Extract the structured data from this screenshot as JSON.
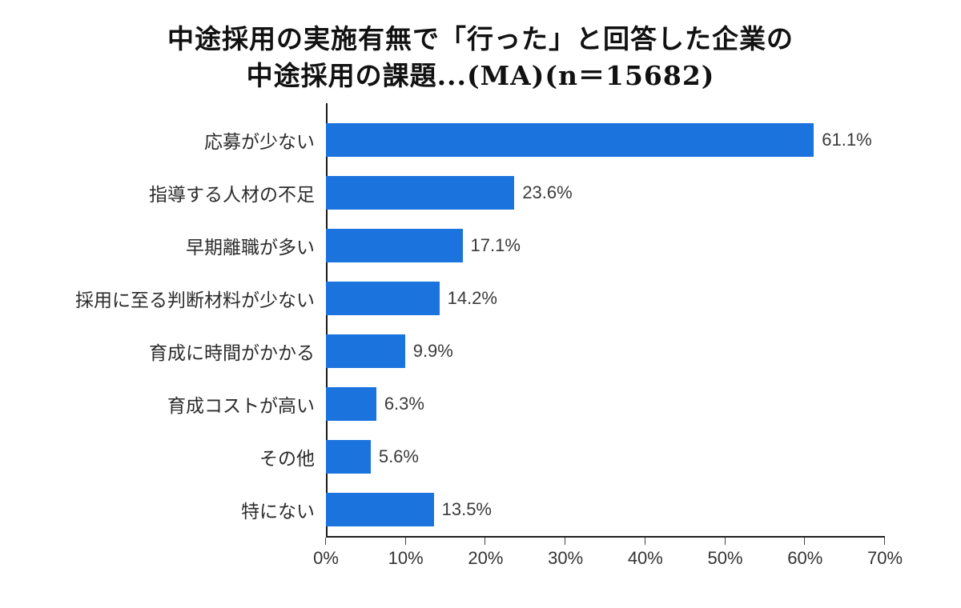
{
  "title": {
    "line1": "中途採用の実施有無で「行った」と回答した企業の",
    "line2": "中途採用の課題...(MA)(n＝15682)"
  },
  "chart_data": {
    "type": "bar",
    "orientation": "horizontal",
    "title": "中途採用の実施有無で「行った」と回答した企業の中途採用の課題...(MA)(n＝15682)",
    "categories": [
      "応募が少ない",
      "指導する人材の不足",
      "早期離職が多い",
      "採用に至る判断材料が少ない",
      "育成に時間がかかる",
      "育成コストが高い",
      "その他",
      "特にない"
    ],
    "values": [
      61.1,
      23.6,
      17.1,
      14.2,
      9.9,
      6.3,
      5.6,
      13.5
    ],
    "value_labels": [
      "61.1%",
      "23.6%",
      "17.1%",
      "14.2%",
      "9.9%",
      "6.3%",
      "5.6%",
      "13.5%"
    ],
    "x_axis_ticks": [
      "0%",
      "10%",
      "20%",
      "30%",
      "40%",
      "50%",
      "60%",
      "70%"
    ],
    "xlim": [
      0,
      70
    ],
    "grid": false,
    "legend": "none",
    "bar_color": "#1b73de",
    "xlabel": "",
    "ylabel": ""
  }
}
